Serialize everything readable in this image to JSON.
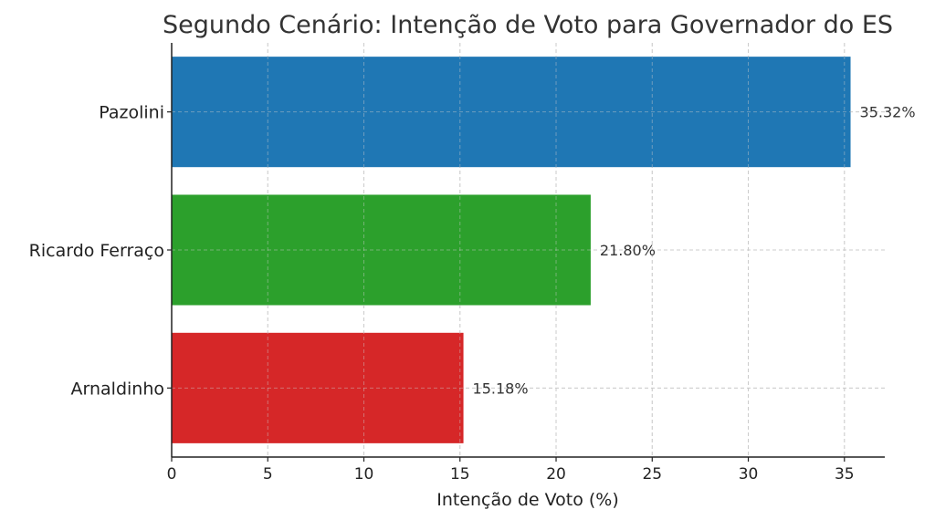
{
  "chart_data": {
    "type": "bar",
    "orientation": "horizontal",
    "title": "Segundo Cenário: Intenção de Voto para Governador do ES",
    "xlabel": "Intenção de Voto (%)",
    "ylabel": "",
    "categories": [
      "Pazolini",
      "Ricardo Ferraço",
      "Arnaldinho"
    ],
    "values": [
      35.32,
      21.8,
      15.18
    ],
    "data_labels": [
      "35.32%",
      "21.80%",
      "15.18%"
    ],
    "colors": [
      "#1f77b4",
      "#2ca02c",
      "#d62728"
    ],
    "xlim": [
      0,
      37.1
    ],
    "xticks": [
      0,
      5,
      10,
      15,
      20,
      25,
      30,
      35
    ],
    "xtick_labels": [
      "0",
      "5",
      "10",
      "15",
      "20",
      "25",
      "30",
      "35"
    ],
    "grid": true
  }
}
